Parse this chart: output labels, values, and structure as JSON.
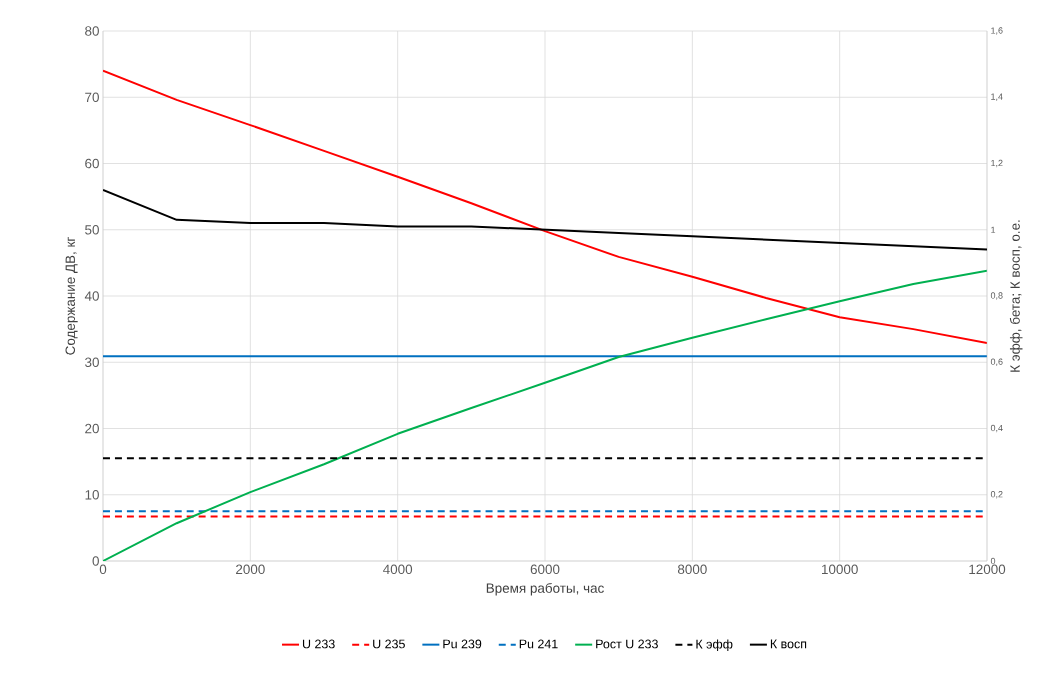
{
  "chart_data": {
    "type": "line",
    "xlabel": "Время работы, час",
    "ylabel": "Содержание ДВ, кг",
    "y2label": "К эфф, бета; К восп, о.е.",
    "x": [
      0,
      1000,
      2000,
      3000,
      4000,
      5000,
      6000,
      7000,
      8000,
      9000,
      10000,
      11000,
      12000
    ],
    "xlim": [
      0,
      12000
    ],
    "xticks": [
      0,
      2000,
      4000,
      6000,
      8000,
      10000,
      12000
    ],
    "ylim": [
      0,
      80
    ],
    "yticks": [
      0,
      10,
      20,
      30,
      40,
      50,
      60,
      70,
      80
    ],
    "y2lim": [
      0,
      1.6
    ],
    "y2ticks": [
      0,
      {
        "value": 0.2,
        "label": "0,2"
      },
      {
        "value": 0.4,
        "label": "0,4"
      },
      {
        "value": 0.6,
        "label": "0,6"
      },
      {
        "value": 0.8,
        "label": "0,8"
      },
      {
        "value": 1,
        "label": "1"
      },
      {
        "value": 1.2,
        "label": "1,2"
      },
      {
        "value": 1.4,
        "label": "1,4"
      },
      {
        "value": 1.6,
        "label": "1,6"
      }
    ],
    "grid": true,
    "legend": "bottom",
    "marker": "none",
    "series": [
      {
        "name": "U 233",
        "color": "#ff0000",
        "line_style": "solid",
        "values": [
          74,
          69.6,
          65.8,
          61.9,
          58.0,
          54.0,
          49.8,
          45.9,
          42.9,
          39.7,
          36.8,
          35.0,
          32.9
        ]
      },
      {
        "name": "U 235",
        "color": "#ff0000",
        "line_style": "dashed",
        "values": [
          6.7,
          6.7,
          6.7,
          6.7,
          6.7,
          6.7,
          6.7,
          6.7,
          6.7,
          6.7,
          6.7,
          6.7,
          6.7
        ]
      },
      {
        "name": "Pu 239",
        "color": "#0070c0",
        "line_style": "solid",
        "values": [
          30.9,
          30.9,
          30.9,
          30.9,
          30.9,
          30.9,
          30.9,
          30.9,
          30.9,
          30.9,
          30.9,
          30.9,
          30.9
        ]
      },
      {
        "name": "Pu 241",
        "color": "#0070c0",
        "line_style": "dashed",
        "values": [
          7.5,
          7.5,
          7.5,
          7.5,
          7.5,
          7.5,
          7.5,
          7.5,
          7.5,
          7.5,
          7.5,
          7.5,
          7.5
        ]
      },
      {
        "name": "Рост U 233",
        "color": "#00b050",
        "line_style": "solid",
        "values": [
          0,
          5.7,
          10.4,
          14.6,
          19.2,
          23.1,
          26.9,
          30.8,
          33.7,
          36.5,
          39.2,
          41.8,
          43.8
        ]
      },
      {
        "name": "К эфф",
        "color": "#000000",
        "line_style": "dashed",
        "axis": "y2",
        "values": [
          0.31,
          0.31,
          0.31,
          0.31,
          0.31,
          0.31,
          0.31,
          0.31,
          0.31,
          0.31,
          0.31,
          0.31,
          0.31
        ]
      },
      {
        "name": "К восп",
        "color": "#000000",
        "line_style": "solid",
        "axis": "y2",
        "values": [
          1.12,
          1.03,
          1.02,
          1.02,
          1.01,
          1.01,
          1.0,
          0.99,
          0.98,
          0.97,
          0.96,
          0.95,
          0.94
        ]
      }
    ]
  }
}
